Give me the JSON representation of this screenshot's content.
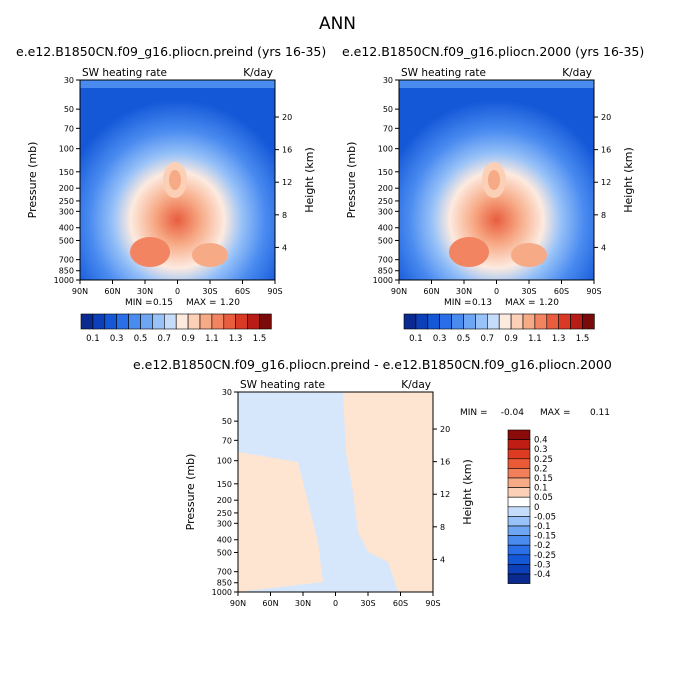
{
  "main_title": "ANN",
  "colors": {
    "lv0": "#0a2a8f",
    "lv1": "#0d3fb8",
    "lv2": "#1458d8",
    "lv3": "#2a6fe8",
    "lv4": "#4a8bf0",
    "lv5": "#6fa6f4",
    "lv6": "#98c2f8",
    "lv7": "#c5dcfb",
    "lv8": "#fdeadf",
    "lv9": "#fbd0b6",
    "lv10": "#f7aa86",
    "lv11": "#f28461",
    "lv12": "#e85d3e",
    "lv13": "#d93a26",
    "lv14": "#b81c16",
    "lv15": "#7a0b0b",
    "diff_blue": "#d6e7fb",
    "diff_orange": "#fde5d2",
    "diff_white": "#ffffff"
  },
  "chart_data": [
    {
      "type": "heatmap",
      "title": "e.e12.B1850CN.f09_g16.pliocn.preind (yrs 16-35)",
      "left_string": "SW heating rate",
      "right_string": "K/day",
      "xlabel": "",
      "ylabel": "Pressure (mb)",
      "y2label": "Height (km)",
      "x_ticks": [
        "90N",
        "60N",
        "30N",
        "0",
        "30S",
        "60S",
        "90S"
      ],
      "y_ticks": [
        30,
        50,
        70,
        100,
        150,
        200,
        250,
        300,
        400,
        500,
        700,
        850,
        1000
      ],
      "y2_ticks": [
        20,
        16,
        12,
        8,
        4
      ],
      "min_label": "MIN =",
      "min_value": "0.15",
      "max_label": "MAX =",
      "max_value": "1.20",
      "colorbar_labels": [
        "0.1",
        "0.3",
        "0.5",
        "0.7",
        "0.9",
        "1.1",
        "1.3",
        "1.5"
      ]
    },
    {
      "type": "heatmap",
      "title": "e.e12.B1850CN.f09_g16.pliocn.2000 (yrs 16-35)",
      "left_string": "SW heating rate",
      "right_string": "K/day",
      "xlabel": "",
      "ylabel": "Pressure (mb)",
      "y2label": "Height (km)",
      "x_ticks": [
        "90N",
        "60N",
        "30N",
        "0",
        "30S",
        "60S",
        "90S"
      ],
      "y_ticks": [
        30,
        50,
        70,
        100,
        150,
        200,
        250,
        300,
        400,
        500,
        700,
        850,
        1000
      ],
      "y2_ticks": [
        20,
        16,
        12,
        8,
        4
      ],
      "min_label": "MIN =",
      "min_value": "0.13",
      "max_label": "MAX =",
      "max_value": "1.20",
      "colorbar_labels": [
        "0.1",
        "0.3",
        "0.5",
        "0.7",
        "0.9",
        "1.1",
        "1.3",
        "1.5"
      ]
    },
    {
      "type": "heatmap",
      "title": "e.e12.B1850CN.f09_g16.pliocn.preind - e.e12.B1850CN.f09_g16.pliocn.2000",
      "left_string": "SW heating rate",
      "right_string": "K/day",
      "xlabel": "",
      "ylabel": "Pressure (mb)",
      "y2label": "Height (km)",
      "x_ticks": [
        "90N",
        "60N",
        "30N",
        "0",
        "30S",
        "60S",
        "90S"
      ],
      "y_ticks": [
        30,
        50,
        70,
        100,
        150,
        200,
        250,
        300,
        400,
        500,
        700,
        850,
        1000
      ],
      "y2_ticks": [
        20,
        16,
        12,
        8,
        4
      ],
      "min_label": "MIN =",
      "min_value": "-0.04",
      "max_label": "MAX =",
      "max_value": "0.11",
      "colorbar_labels": [
        "0.4",
        "0.3",
        "0.25",
        "0.2",
        "0.15",
        "0.1",
        "0.05",
        "0",
        "-0.05",
        "-0.1",
        "-0.15",
        "-0.2",
        "-0.25",
        "-0.3",
        "-0.4"
      ]
    }
  ]
}
